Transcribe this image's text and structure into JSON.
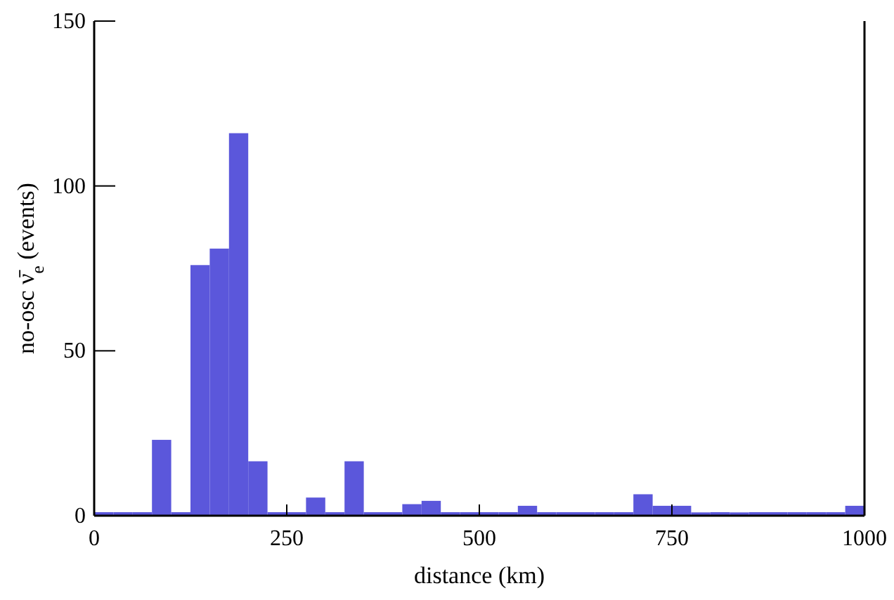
{
  "chart_data": {
    "type": "histogram",
    "xlabel": "distance (km)",
    "ylabel": "no-osc ν̄$_{e}$ (events)",
    "bins": [
      0,
      25,
      50,
      75,
      100,
      125,
      150,
      175,
      200,
      225,
      250,
      275,
      300,
      325,
      350,
      375,
      400,
      425,
      450,
      475,
      500,
      525,
      550,
      575,
      600,
      625,
      650,
      675,
      700,
      725,
      750,
      775,
      800,
      825,
      850,
      875,
      900,
      925,
      950,
      975,
      1000
    ],
    "values": [
      0,
      0,
      0,
      23,
      0,
      76,
      81,
      116,
      16.5,
      0,
      0,
      5.5,
      0,
      16.5,
      0,
      0,
      3.5,
      4.5,
      0,
      0,
      0,
      0,
      3,
      0,
      0,
      0,
      0,
      0,
      6.5,
      3,
      3,
      1,
      0,
      1,
      0,
      0,
      0,
      0,
      0,
      3
    ],
    "color": "#5b57db",
    "xlim": [
      0,
      1000
    ],
    "xticks": [
      0,
      250,
      500,
      750,
      1000
    ],
    "ylim": [
      0,
      150
    ],
    "yticks": [
      0,
      50,
      100,
      150
    ],
    "grid": false
  }
}
